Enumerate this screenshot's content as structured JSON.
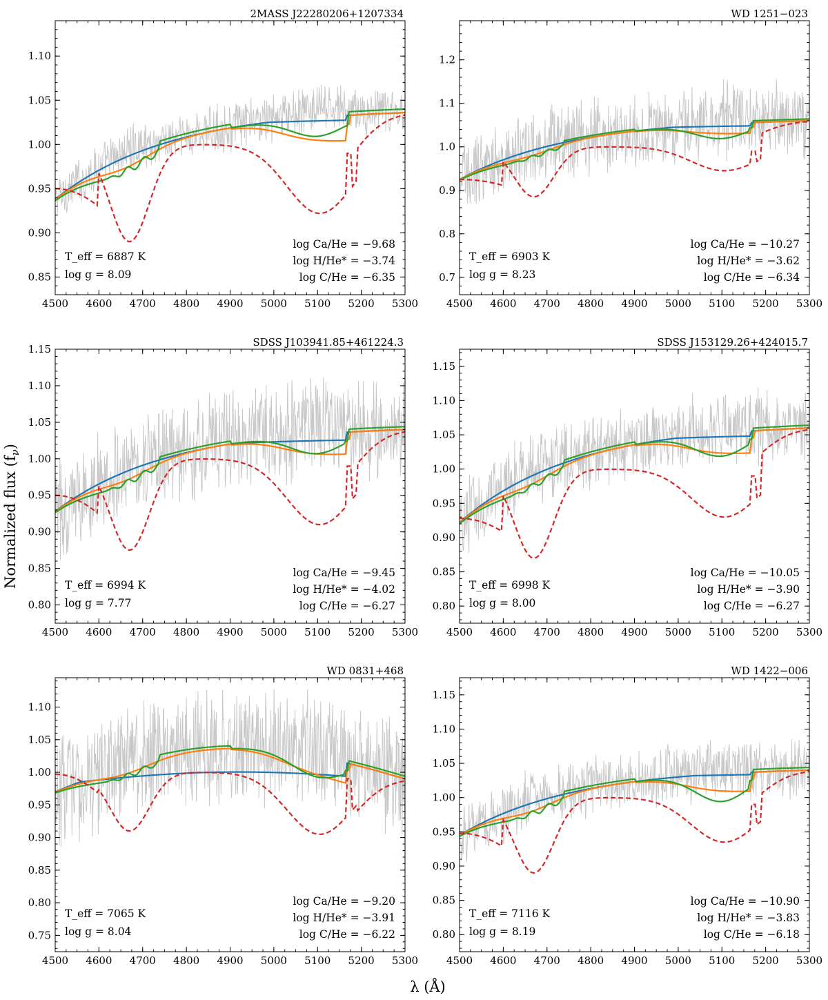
{
  "figure": {
    "ylabel": "Normalized flux (f",
    "ylabel_sub": "ν",
    "ylabel_close": ")",
    "xlabel": "λ (Å)"
  },
  "colors": {
    "data": "#c8c8c8",
    "blue": "#1f77b4",
    "orange": "#ff7f0e",
    "green": "#2ca02c",
    "red": "#d62728"
  },
  "chart_data": [
    {
      "type": "line",
      "title": "2MASS J22280206+1207334",
      "xlabel": "λ (Å)",
      "ylabel": "Normalized flux (fν)",
      "xlim": [
        4500,
        5300
      ],
      "ylim": [
        0.83,
        1.14
      ],
      "xticks": [
        4500,
        4600,
        4700,
        4800,
        4900,
        5000,
        5100,
        5200,
        5300
      ],
      "yticks": [
        0.85,
        0.9,
        0.95,
        1.0,
        1.05,
        1.1
      ],
      "ytick_labels": [
        "0.85",
        "0.90",
        "0.95",
        "1.00",
        "1.05",
        "1.10"
      ],
      "annotations": {
        "teff": "T_eff = 6887 K",
        "logg": "log g = 8.09",
        "ca": "log Ca/He = −9.68",
        "h": "log H/He* = −3.74",
        "c": "log C/He = −6.35"
      },
      "model": {
        "start": 0.938,
        "end": 1.036,
        "bump": 0.0,
        "cont": 1.025
      },
      "noise": 0.022,
      "orange_edge": 1.003,
      "green_edge": 1.01,
      "red": {
        "plateau": 1.0,
        "start": 0.95,
        "end": 1.036,
        "d1": 0.11,
        "d2": 0.078
      }
    },
    {
      "type": "line",
      "title": "WD 1251−023",
      "xlabel": "λ (Å)",
      "ylabel": "Normalized flux (fν)",
      "xlim": [
        4500,
        5300
      ],
      "ylim": [
        0.66,
        1.29
      ],
      "xticks": [
        4500,
        4600,
        4700,
        4800,
        4900,
        5000,
        5100,
        5200,
        5300
      ],
      "yticks": [
        0.7,
        0.8,
        0.9,
        1.0,
        1.1,
        1.2
      ],
      "ytick_labels": [
        "0.7",
        "0.8",
        "0.9",
        "1.0",
        "1.1",
        "1.2"
      ],
      "annotations": {
        "teff": "T_eff = 6903 K",
        "logg": "log g = 8.23",
        "ca": "log Ca/He = −10.27",
        "h": "log H/He* = −3.62",
        "c": "log C/He = −6.34"
      },
      "model": {
        "start": 0.925,
        "end": 1.06,
        "bump": 0.0,
        "cont": 1.045
      },
      "noise": 0.07,
      "orange_edge": 1.03,
      "green_edge": 1.02,
      "red": {
        "plateau": 1.0,
        "start": 0.925,
        "end": 1.06,
        "d1": 0.115,
        "d2": 0.055
      }
    },
    {
      "type": "line",
      "title": "SDSS J103941.85+461224.3",
      "xlabel": "λ (Å)",
      "ylabel": "Normalized flux (fν)",
      "xlim": [
        4500,
        5300
      ],
      "ylim": [
        0.775,
        1.15
      ],
      "xticks": [
        4500,
        4600,
        4700,
        4800,
        4900,
        5000,
        5100,
        5200,
        5300
      ],
      "yticks": [
        0.8,
        0.85,
        0.9,
        0.95,
        1.0,
        1.05,
        1.1,
        1.15
      ],
      "ytick_labels": [
        "0.80",
        "0.85",
        "0.90",
        "0.95",
        "1.00",
        "1.05",
        "1.10",
        "1.15"
      ],
      "annotations": {
        "teff": "T_eff = 6994 K",
        "logg": "log g = 7.77",
        "ca": "log Ca/He = −9.45",
        "h": "log H/He* = −4.02",
        "c": "log C/He = −6.27"
      },
      "model": {
        "start": 0.928,
        "end": 1.04,
        "bump": 0.0,
        "cont": 1.021
      },
      "noise": 0.055,
      "orange_edge": 1.005,
      "green_edge": 1.008,
      "red": {
        "plateau": 1.0,
        "start": 0.95,
        "end": 1.04,
        "d1": 0.125,
        "d2": 0.09
      }
    },
    {
      "type": "line",
      "title": "SDSS J153129.26+424015.7",
      "xlabel": "λ (Å)",
      "ylabel": "Normalized flux (fν)",
      "xlim": [
        4500,
        5300
      ],
      "ylim": [
        0.775,
        1.175
      ],
      "xticks": [
        4500,
        4600,
        4700,
        4800,
        4900,
        5000,
        5100,
        5200,
        5300
      ],
      "yticks": [
        0.8,
        0.85,
        0.9,
        0.95,
        1.0,
        1.05,
        1.1,
        1.15
      ],
      "ytick_labels": [
        "0.80",
        "0.85",
        "0.90",
        "0.95",
        "1.00",
        "1.05",
        "1.10",
        "1.15"
      ],
      "annotations": {
        "teff": "T_eff = 6998 K",
        "logg": "log g = 8.00",
        "ca": "log Ca/He = −10.05",
        "h": "log H/He* = −3.90",
        "c": "log C/He = −6.27"
      },
      "model": {
        "start": 0.922,
        "end": 1.06,
        "bump": 0.0,
        "cont": 1.045
      },
      "noise": 0.045,
      "orange_edge": 1.022,
      "green_edge": 1.02,
      "red": {
        "plateau": 1.0,
        "start": 0.928,
        "end": 1.06,
        "d1": 0.13,
        "d2": 0.07
      }
    },
    {
      "type": "line",
      "title": "WD 0831+468",
      "xlabel": "λ (Å)",
      "ylabel": "Normalized flux (fν)",
      "xlim": [
        4500,
        5300
      ],
      "ylim": [
        0.725,
        1.145
      ],
      "xticks": [
        4500,
        4600,
        4700,
        4800,
        4900,
        5000,
        5100,
        5200,
        5300
      ],
      "yticks": [
        0.75,
        0.8,
        0.85,
        0.9,
        0.95,
        1.0,
        1.05,
        1.1
      ],
      "ytick_labels": [
        "0.75",
        "0.80",
        "0.85",
        "0.90",
        "0.95",
        "1.00",
        "1.05",
        "1.10"
      ],
      "annotations": {
        "teff": "T_eff = 7065 K",
        "logg": "log g = 8.04",
        "ca": "log Ca/He = −9.20",
        "h": "log H/He* = −3.91",
        "c": "log C/He = −6.22"
      },
      "model": {
        "start": 0.97,
        "end": 0.99,
        "bump": 0.05,
        "cont": 0.985
      },
      "noise": 0.07,
      "orange_edge": 0.985,
      "green_edge": 0.99,
      "red": {
        "plateau": 1.0,
        "start": 0.997,
        "end": 0.99,
        "d1": 0.09,
        "d2": 0.095
      }
    },
    {
      "type": "line",
      "title": "WD 1422−006",
      "xlabel": "λ (Å)",
      "ylabel": "Normalized flux (fν)",
      "xlim": [
        4500,
        5300
      ],
      "ylim": [
        0.775,
        1.175
      ],
      "xticks": [
        4500,
        4600,
        4700,
        4800,
        4900,
        5000,
        5100,
        5200,
        5300
      ],
      "yticks": [
        0.8,
        0.85,
        0.9,
        0.95,
        1.0,
        1.05,
        1.1,
        1.15
      ],
      "ytick_labels": [
        "0.80",
        "0.85",
        "0.90",
        "0.95",
        "1.00",
        "1.05",
        "1.10",
        "1.15"
      ],
      "annotations": {
        "teff": "T_eff = 7116 K",
        "logg": "log g = 8.19",
        "ca": "log Ca/He = −10.90",
        "h": "log H/He* = −3.83",
        "c": "log C/He = −6.18"
      },
      "model": {
        "start": 0.945,
        "end": 1.04,
        "bump": 0.0,
        "cont": 1.032
      },
      "noise": 0.035,
      "orange_edge": 1.008,
      "green_edge": 0.995,
      "red": {
        "plateau": 1.0,
        "start": 0.948,
        "end": 1.04,
        "d1": 0.11,
        "d2": 0.065
      }
    }
  ]
}
